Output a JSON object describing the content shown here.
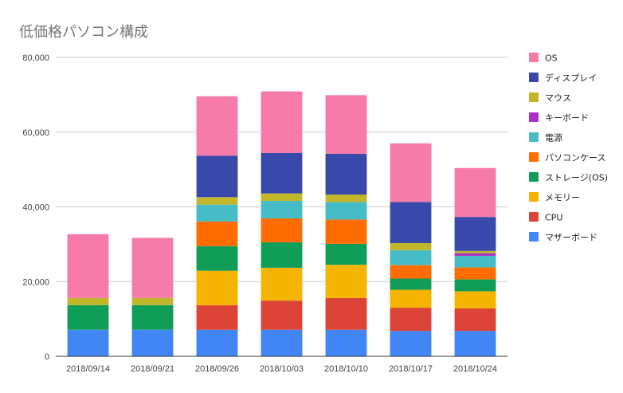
{
  "chart_data": {
    "type": "bar",
    "stacked": true,
    "title": "低価格パソコン構成",
    "xlabel": "",
    "ylabel": "",
    "ylim": [
      0,
      80000
    ],
    "yticks": [
      "0",
      "20,000",
      "40,000",
      "60,000",
      "80,000"
    ],
    "ytick_values": [
      0,
      20000,
      40000,
      60000,
      80000
    ],
    "grid": true,
    "legend_position": "right",
    "categories": [
      "2018/09/14",
      "2018/09/21",
      "2018/09/26",
      "2018/10/03",
      "2018/10/10",
      "2018/10/17",
      "2018/10/24"
    ],
    "series": [
      {
        "name": "マザーボード",
        "color": "#4285f4",
        "values": [
          7100,
          7100,
          7100,
          7100,
          7100,
          6800,
          6800
        ]
      },
      {
        "name": "CPU",
        "color": "#db4437",
        "values": [
          0,
          0,
          6600,
          7800,
          8500,
          6200,
          6000
        ]
      },
      {
        "name": "メモリー",
        "color": "#f4b400",
        "values": [
          0,
          0,
          9200,
          8800,
          8900,
          4800,
          4600
        ]
      },
      {
        "name": "ストレージ(OS)",
        "color": "#0f9d58",
        "values": [
          6600,
          6600,
          6600,
          6800,
          5600,
          3000,
          3200
        ]
      },
      {
        "name": "パソコンケース",
        "color": "#ff6d00",
        "values": [
          0,
          0,
          6600,
          6400,
          6500,
          3600,
          3200
        ]
      },
      {
        "name": "電源",
        "color": "#46bdc6",
        "values": [
          0,
          0,
          4500,
          4700,
          4700,
          4000,
          3100
        ]
      },
      {
        "name": "キーボード",
        "color": "#ab30c4",
        "values": [
          0,
          0,
          0,
          0,
          0,
          0,
          700
        ]
      },
      {
        "name": "マウス",
        "color": "#c2b72b",
        "values": [
          1900,
          1900,
          2000,
          2000,
          2000,
          1900,
          600
        ]
      },
      {
        "name": "ディスプレイ",
        "color": "#3949ab",
        "values": [
          0,
          0,
          11100,
          10800,
          10900,
          11000,
          9100
        ]
      },
      {
        "name": "OS",
        "color": "#f77ba8",
        "values": [
          17100,
          16100,
          15900,
          16500,
          15700,
          15700,
          13100
        ]
      }
    ],
    "legend_order": [
      "OS",
      "ディスプレイ",
      "マウス",
      "キーボード",
      "電源",
      "パソコンケース",
      "ストレージ(OS)",
      "メモリー",
      "CPU",
      "マザーボード"
    ]
  }
}
